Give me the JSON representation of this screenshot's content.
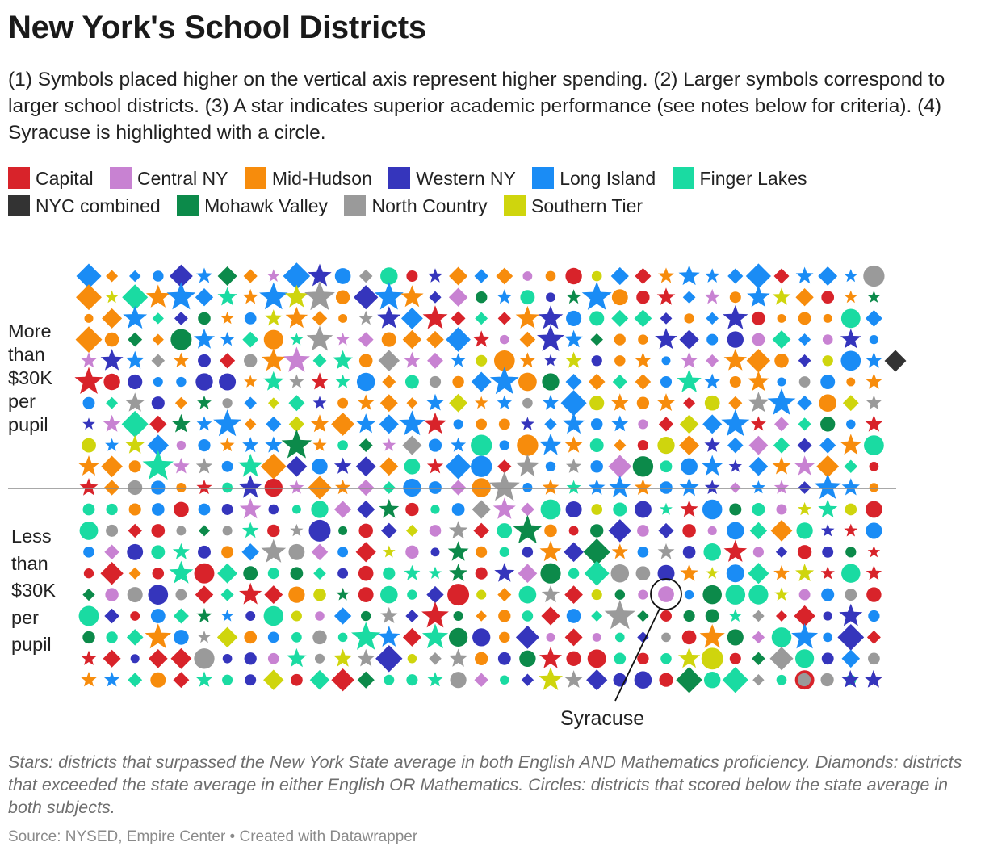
{
  "title": "New York's School Districts",
  "subtitle": "(1) Symbols placed higher on the vertical axis represent higher spending. (2) Larger symbols correspond to larger school districts. (3) A star indicates superior academic performance (see notes below for criteria). (4) Syracuse is highlighted with a circle.",
  "notes": "Stars: districts that surpassed the New York State average in both English AND Mathematics proficiency. Diamonds: districts that exceeded the state average in either English OR Mathematics. Circles: districts that scored below the state average in both subjects.",
  "source": "Source: NYSED, Empire Center • Created with Datawrapper",
  "chart_data": {
    "type": "scatter",
    "title": "New York's School Districts",
    "y_groups": [
      {
        "key": "high",
        "label": "More than $30K per pupil"
      },
      {
        "key": "low",
        "label": "Less than $30K per pupil"
      }
    ],
    "threshold": "$30K per pupil",
    "legend": [
      {
        "key": "capital",
        "label": "Capital",
        "color": "#d8232a"
      },
      {
        "key": "central",
        "label": "Central NY",
        "color": "#c882d2"
      },
      {
        "key": "midhudson",
        "label": "Mid-Hudson",
        "color": "#f78c0c"
      },
      {
        "key": "western",
        "label": "Western NY",
        "color": "#3535bc"
      },
      {
        "key": "longisland",
        "label": "Long Island",
        "color": "#1a8cf5"
      },
      {
        "key": "fingerlakes",
        "label": "Finger Lakes",
        "color": "#1adba2"
      },
      {
        "key": "nyc",
        "label": "NYC combined",
        "color": "#333333"
      },
      {
        "key": "mohawk",
        "label": "Mohawk Valley",
        "color": "#0c8a4a"
      },
      {
        "key": "north",
        "label": "North Country",
        "color": "#9a9a9a"
      },
      {
        "key": "southern",
        "label": "Southern Tier",
        "color": "#cfd50d"
      }
    ],
    "shapes": {
      "star": "above state average in both English and Mathematics",
      "diamond": "above state average in English or Mathematics",
      "circle": "below state average in both subjects"
    },
    "highlight": {
      "label": "Syracuse",
      "region": "central",
      "shape": "circle",
      "group": "low"
    },
    "nyc": {
      "label": "NYC combined",
      "region": "nyc",
      "shape": "diamond",
      "group": "high"
    },
    "districts_high": "ZkSkTkHMwKQdHkQkJmQKwMTKSkTMTKSkRmRmRdHk8keSkQKdUmRnHkRKSKwMQKSdUKQM3dGd0kRl0KQk0KTcRNHKQKQdHk8neLG0DnmzXRlyfmS0l0NHnD7nTmRoMdFTmW8mX3nEMzMm23HRnUdWiQ2Hdq0dQnTRnTmQmHiEkR82S3mRkQ3OFmFiRk2T0lzHmVnimDSGmnXTlXtEdjmXS0KjmkHiinj23SznzmQ2GnzHR2UK0kRnFiSnXVmXU0mD3nmDinRiHiHiDRjFjDCTkHS3QXXyS4kXlwkwmC2S0lUNiTo4jzTmQKTkn2TnnzHTmXiHjXjwjQ8jR1GlyVmTo3Sw2VKHMVkXlSlDl1iy3WkjmT3ymRnWkG0lF3RnkTlUn20kR0mC3CTlX0mGiW1j1mG3RmG0kTk3nQ31knUmW0lVOGlQmTNCm0iz3SmX3S3Szm0nWmGiWnjGkzGiy0nyRmnzy1R10j0Q3j3EQyXDmk1kRi0m1Xkx1nRmQ8lmz3WmRkTkWiUkz2Uk0m0nmjSCKX0=",
    "districts_low": "Q0kx1mR2TmRmVoDkTkwkwQXlW0iHjRmUQXmW0kXm0nnRnmQmQj0lnS1GWkRnV2kGlHnSi0m0nzXQmk0iWiW2jUkn3FwiGlHkFlymGwiW2UkjQXHTmSXCl0kj2FiR0iT3kSSD2mSy3XiDFjzSHRXQ2QlHlXnVn2nWlUnWlEmR3Gm2S2nS30oD0m3kWlnnzTlXl2iyXmDmnDGG0jjHkXlHjyRHnnm0nXRnX3XjyXlCQm2TlWnzy0ly0nz0mmDmEiVkX1k0jmVkDmxlDFn0nGQ1R1HnUjlGmCy3Umn3Gm2G2GimTl2iSHxGjiCnHnTkXmEzn2TmD0T0nlSR2nl0j3WoU1VkzQW1xE0ljFTinFHnTmXkzmn2jxiEiyjliCxDlmRlGWj1jGkTmDnRm00GmynzjnXmCFlHm2m2CGQyDnSkDlXmXm1GmyHmGiCiWmXlzHnU0nHkyjmyXlXlmlzXkUmTlW1nlCiy1yTjVmxGlGkE2TiTyHlXjymyjnkFm1D13mWnWmWmxmzmGiGm1EiT2FkT3FiGiWlG1jD0lDiXSliXnT0kmHQHlzQV0n",
    "encoding": "base64-packed: 2-bit stars/diamonds/circles x2, 4-bit region index into legend, row-major grid"
  }
}
